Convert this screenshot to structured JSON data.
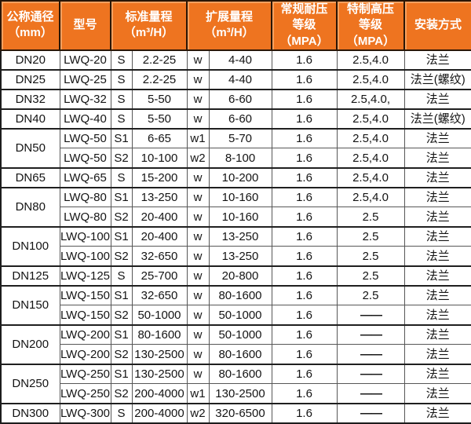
{
  "colors": {
    "header_bg": "#ee7420",
    "header_text": "#ffffff",
    "outer_border": "#1c1c1c",
    "inner_border": "#575757",
    "cell_text": "#141414",
    "cell_bg": "#ffffff"
  },
  "table": {
    "header": {
      "diameter": "公称通径\n（mm）",
      "model": "型号",
      "std_range": "标准量程\n（m³/H）",
      "ext_range": "扩展量程\n（m³/H）",
      "normal_pressure": "常规耐压\n等级（MPA）",
      "high_pressure": "特制高压\n等级（MPA）",
      "install": "安装方式"
    },
    "groups": [
      {
        "diameter": "DN20",
        "rows": [
          {
            "model": "LWQ-20",
            "s": "S",
            "std": "2.2-25",
            "w": "w",
            "ext": "4-40",
            "np": "1.6",
            "hp": "2.5,4.0",
            "install": "法兰"
          }
        ]
      },
      {
        "diameter": "DN25",
        "rows": [
          {
            "model": "LWQ-25",
            "s": "S",
            "std": "2.2-25",
            "w": "w",
            "ext": "4-40",
            "np": "1.6",
            "hp": "2.5,4.0",
            "install": "法兰(螺纹)"
          }
        ]
      },
      {
        "diameter": "DN32",
        "rows": [
          {
            "model": "LWQ-32",
            "s": "S",
            "std": "5-50",
            "w": "w",
            "ext": "6-60",
            "np": "1.6",
            "hp": "2.5,4.0,",
            "install": "法兰"
          }
        ]
      },
      {
        "diameter": "DN40",
        "rows": [
          {
            "model": "LWQ-40",
            "s": "S",
            "std": "5-50",
            "w": "w",
            "ext": "6-60",
            "np": "1.6",
            "hp": "2.5,4.0",
            "install": "法兰(螺纹)"
          }
        ]
      },
      {
        "diameter": "DN50",
        "rows": [
          {
            "model": "LWQ-50",
            "s": "S1",
            "std": "6-65",
            "w": "w1",
            "ext": "5-70",
            "np": "1.6",
            "hp": "2.5,4.0",
            "install": "法兰"
          },
          {
            "model": "LWQ-50",
            "s": "S2",
            "std": "10-100",
            "w": "w2",
            "ext": "8-100",
            "np": "1.6",
            "hp": "2.5,4.0",
            "install": "法兰"
          }
        ]
      },
      {
        "diameter": "DN65",
        "rows": [
          {
            "model": "LWQ-65",
            "s": "S",
            "std": "15-200",
            "w": "w",
            "ext": "10-200",
            "np": "1.6",
            "hp": "2.5,4.0",
            "install": "法兰"
          }
        ]
      },
      {
        "diameter": "DN80",
        "rows": [
          {
            "model": "LWQ-80",
            "s": "S1",
            "std": "13-250",
            "w": "w",
            "ext": "10-160",
            "np": "1.6",
            "hp": "2.5,4.0",
            "install": "法兰"
          },
          {
            "model": "LWQ-80",
            "s": "S2",
            "std": "20-400",
            "w": "w",
            "ext": "10-160",
            "np": "1.6",
            "hp": "2.5",
            "install": "法兰"
          }
        ]
      },
      {
        "diameter": "DN100",
        "rows": [
          {
            "model": "LWQ-100",
            "s": "S1",
            "std": "20-400",
            "w": "w",
            "ext": "13-250",
            "np": "1.6",
            "hp": "2.5",
            "install": "法兰"
          },
          {
            "model": "LWQ-100",
            "s": "S2",
            "std": "32-650",
            "w": "w",
            "ext": "13-250",
            "np": "1.6",
            "hp": "2.5",
            "install": "法兰"
          }
        ]
      },
      {
        "diameter": "DN125",
        "rows": [
          {
            "model": "LWQ-125",
            "s": "S",
            "std": "25-700",
            "w": "w",
            "ext": "20-800",
            "np": "1.6",
            "hp": "2.5",
            "install": "法兰"
          }
        ]
      },
      {
        "diameter": "DN150",
        "rows": [
          {
            "model": "LWQ-150",
            "s": "S1",
            "std": "32-650",
            "w": "w",
            "ext": "80-1600",
            "np": "1.6",
            "hp": "2.5",
            "install": "法兰"
          },
          {
            "model": "LWQ-150",
            "s": "S2",
            "std": "50-1000",
            "w": "w",
            "ext": "50-1000",
            "np": "1.6",
            "hp": "——",
            "install": "法兰"
          }
        ]
      },
      {
        "diameter": "DN200",
        "rows": [
          {
            "model": "LWQ-200",
            "s": "S1",
            "std": "80-1600",
            "w": "w",
            "ext": "50-1000",
            "np": "1.6",
            "hp": "——",
            "install": "法兰"
          },
          {
            "model": "LWQ-200",
            "s": "S2",
            "std": "130-2500",
            "w": "w",
            "ext": "80-1600",
            "np": "1.6",
            "hp": "——",
            "install": "法兰"
          }
        ]
      },
      {
        "diameter": "DN250",
        "rows": [
          {
            "model": "LWQ-250",
            "s": "S1",
            "std": "130-2500",
            "w": "w",
            "ext": "80-1600",
            "np": "1.6",
            "hp": "——",
            "install": "法兰"
          },
          {
            "model": "LWQ-250",
            "s": "S2",
            "std": "200-4000",
            "w": "w1",
            "ext": "130-2500",
            "np": "1.6",
            "hp": "——",
            "install": "法兰"
          }
        ]
      },
      {
        "diameter": "DN300",
        "rows": [
          {
            "model": "LWQ-300",
            "s": "S",
            "std": "200-4000",
            "w": "w2",
            "ext": "320-6500",
            "np": "1.6",
            "hp": "——",
            "install": "法兰"
          }
        ]
      }
    ]
  }
}
